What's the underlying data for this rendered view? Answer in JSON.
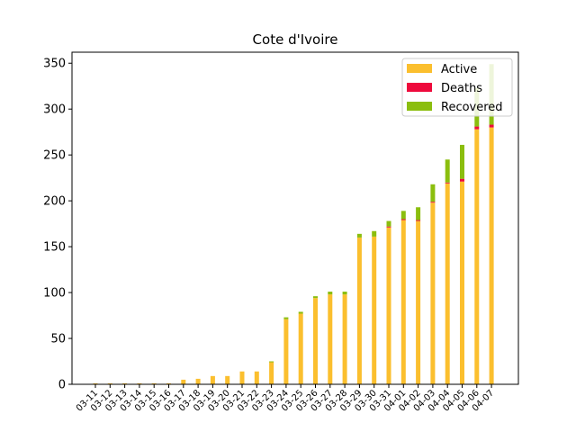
{
  "chart_data": {
    "type": "bar",
    "stacked": true,
    "title": "Cote d'Ivoire",
    "xlabel": "",
    "ylabel": "",
    "ylim": [
      0,
      362
    ],
    "yticks": [
      0,
      50,
      100,
      150,
      200,
      250,
      300,
      350
    ],
    "legend": "top-right",
    "grid": false,
    "categories": [
      "03-11",
      "03-12",
      "03-13",
      "03-14",
      "03-15",
      "03-16",
      "03-17",
      "03-18",
      "03-19",
      "03-20",
      "03-21",
      "03-22",
      "03-23",
      "03-24",
      "03-25",
      "03-26",
      "03-27",
      "03-28",
      "03-29",
      "03-30",
      "03-31",
      "04-01",
      "04-02",
      "04-03",
      "04-04",
      "04-05",
      "04-06",
      "04-07"
    ],
    "series": [
      {
        "name": "Active",
        "color": "#fbbf2e",
        "values": [
          1,
          1,
          1,
          1,
          1,
          1,
          5,
          6,
          9,
          9,
          14,
          14,
          24,
          71,
          77,
          94,
          98,
          98,
          160,
          161,
          171,
          179,
          178,
          198,
          219,
          221,
          278,
          280
        ]
      },
      {
        "name": "Deaths",
        "color": "#ee0a3c",
        "values": [
          0,
          0,
          0,
          0,
          0,
          0,
          0,
          0,
          0,
          0,
          0,
          0,
          0,
          0,
          0,
          0,
          0,
          0,
          0,
          0,
          1,
          1,
          1,
          1,
          1,
          3,
          3,
          3
        ]
      },
      {
        "name": "Recovered",
        "color": "#8bbe0e",
        "values": [
          0,
          0,
          0,
          0,
          0,
          0,
          0,
          0,
          0,
          0,
          0,
          0,
          1,
          2,
          2,
          2,
          3,
          3,
          4,
          6,
          6,
          9,
          14,
          19,
          25,
          37,
          42,
          66
        ]
      }
    ]
  }
}
